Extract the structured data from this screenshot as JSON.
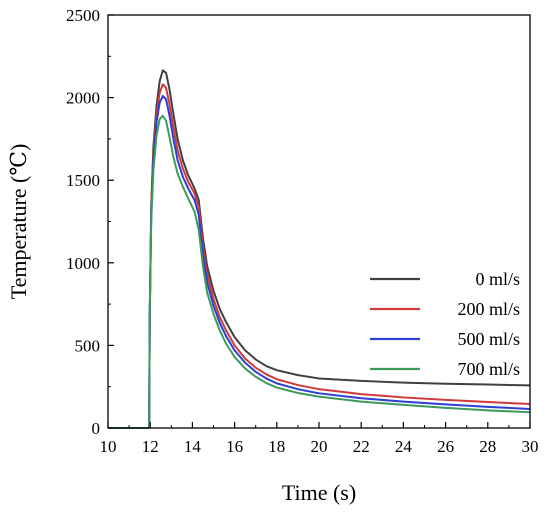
{
  "chart_data": {
    "type": "line",
    "title": "",
    "xlabel": "Time (s)",
    "ylabel": "Temperature (℃)",
    "xlim": [
      10,
      30
    ],
    "ylim": [
      0,
      2500
    ],
    "xticks": [
      10,
      12,
      14,
      16,
      18,
      20,
      22,
      24,
      26,
      28,
      30
    ],
    "yticks": [
      0,
      500,
      1000,
      1500,
      2000,
      2500
    ],
    "grid": false,
    "legend_position": "right",
    "series": [
      {
        "name": "0 ml/s",
        "color": "#404040",
        "x": [
          10,
          11.95,
          11.98,
          12.05,
          12.15,
          12.3,
          12.45,
          12.6,
          12.75,
          12.9,
          13.1,
          13.3,
          13.55,
          13.8,
          14.1,
          14.3,
          14.5,
          14.7,
          15.0,
          15.3,
          15.6,
          16.0,
          16.5,
          17.0,
          17.5,
          18.0,
          19.0,
          20.0,
          22.0,
          24.0,
          26.0,
          28.0,
          30.0
        ],
        "y": [
          0,
          0,
          700,
          1350,
          1700,
          1950,
          2100,
          2165,
          2150,
          2060,
          1900,
          1750,
          1620,
          1530,
          1450,
          1380,
          1150,
          980,
          830,
          720,
          640,
          550,
          470,
          415,
          375,
          350,
          320,
          300,
          285,
          275,
          268,
          263,
          258
        ]
      },
      {
        "name": "200 ml/s",
        "color": "#d03a3a",
        "x": [
          10,
          11.95,
          11.98,
          12.05,
          12.15,
          12.3,
          12.45,
          12.6,
          12.75,
          12.9,
          13.1,
          13.3,
          13.55,
          13.8,
          14.1,
          14.3,
          14.5,
          14.7,
          15.0,
          15.3,
          15.6,
          16.0,
          16.5,
          17.0,
          17.5,
          18.0,
          19.0,
          20.0,
          22.0,
          24.0,
          26.0,
          28.0,
          30.0
        ],
        "y": [
          0,
          0,
          700,
          1320,
          1660,
          1900,
          2030,
          2080,
          2060,
          1970,
          1820,
          1680,
          1570,
          1490,
          1420,
          1340,
          1100,
          930,
          780,
          670,
          590,
          500,
          420,
          365,
          325,
          295,
          260,
          235,
          205,
          185,
          170,
          157,
          145
        ]
      },
      {
        "name": "500 ml/s",
        "color": "#2d3fd6",
        "x": [
          10,
          11.95,
          11.98,
          12.05,
          12.15,
          12.3,
          12.45,
          12.6,
          12.75,
          12.9,
          13.1,
          13.3,
          13.55,
          13.8,
          14.1,
          14.3,
          14.5,
          14.7,
          15.0,
          15.3,
          15.6,
          16.0,
          16.5,
          17.0,
          17.5,
          18.0,
          19.0,
          20.0,
          22.0,
          24.0,
          26.0,
          28.0,
          30.0
        ],
        "y": [
          0,
          0,
          700,
          1300,
          1620,
          1850,
          1970,
          2010,
          1990,
          1900,
          1750,
          1620,
          1520,
          1450,
          1380,
          1290,
          1050,
          880,
          740,
          635,
          555,
          470,
          395,
          340,
          300,
          270,
          235,
          210,
          180,
          160,
          143,
          128,
          115
        ]
      },
      {
        "name": "700 ml/s",
        "color": "#3d9a5a",
        "x": [
          10,
          11.95,
          11.98,
          12.05,
          12.15,
          12.3,
          12.45,
          12.6,
          12.75,
          12.9,
          13.1,
          13.3,
          13.55,
          13.8,
          14.1,
          14.3,
          14.5,
          14.7,
          15.0,
          15.3,
          15.6,
          16.0,
          16.5,
          17.0,
          17.5,
          18.0,
          19.0,
          20.0,
          22.0,
          24.0,
          26.0,
          28.0,
          30.0
        ],
        "y": [
          0,
          0,
          700,
          1260,
          1560,
          1770,
          1870,
          1890,
          1860,
          1770,
          1640,
          1540,
          1460,
          1390,
          1310,
          1200,
          980,
          820,
          690,
          590,
          510,
          430,
          360,
          310,
          272,
          245,
          212,
          190,
          160,
          140,
          122,
          107,
          95
        ]
      }
    ]
  }
}
